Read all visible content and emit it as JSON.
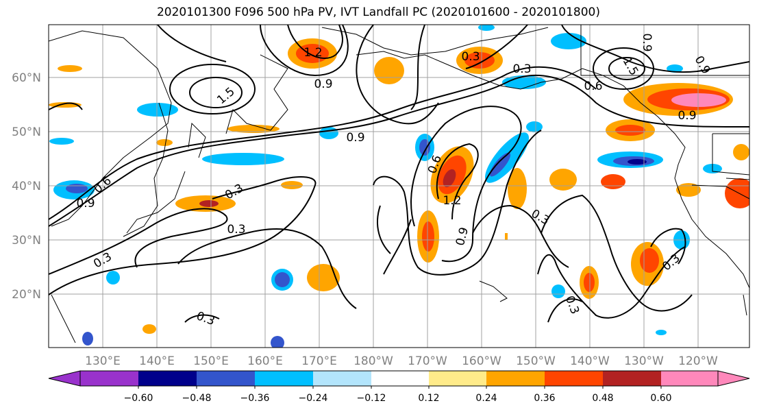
{
  "title": "2020101300 F096 500 hPa PV, IVT Landfall PC (2020101600 - 2020101800)",
  "map": {
    "lat_ticks": [
      {
        "label": "60°N",
        "lat": 60
      },
      {
        "label": "50°N",
        "lat": 50
      },
      {
        "label": "40°N",
        "lat": 40
      },
      {
        "label": "30°N",
        "lat": 30
      },
      {
        "label": "20°N",
        "lat": 20
      }
    ],
    "lon_ticks": [
      {
        "label": "130°E",
        "lon": 130
      },
      {
        "label": "140°E",
        "lon": 140
      },
      {
        "label": "150°E",
        "lon": 150
      },
      {
        "label": "160°E",
        "lon": 160
      },
      {
        "label": "170°E",
        "lon": 170
      },
      {
        "label": "180°W",
        "lon": 180
      },
      {
        "label": "170°W",
        "lon": 190
      },
      {
        "label": "160°W",
        "lon": 200
      },
      {
        "label": "150°W",
        "lon": 210
      },
      {
        "label": "140°W",
        "lon": 220
      },
      {
        "label": "130°W",
        "lon": 230
      },
      {
        "label": "120°W",
        "lon": 240
      }
    ],
    "contour_labels": [
      "1.2",
      "1.5",
      "0.9",
      "0.9",
      "0.9",
      "0.3",
      "0.6",
      "0.9",
      "0.3",
      "0.3",
      "0.3",
      "0.6",
      "1.2",
      "0.9",
      "0.3",
      "0.6",
      "0.3",
      "0.3",
      "0.9",
      "0.9",
      "1.5",
      "0.3",
      "0.3"
    ]
  },
  "colorbar": {
    "colors": [
      "#9932cc",
      "#00008b",
      "#3355cc",
      "#00bfff",
      "#b3e5fc",
      "#ffffff",
      "#ffeb8a",
      "#ffa500",
      "#ff4500",
      "#b22222",
      "#ff88bb"
    ],
    "labels": [
      "−0.60",
      "−0.48",
      "−0.36",
      "−0.24",
      "−0.12",
      "0.12",
      "0.24",
      "0.36",
      "0.48",
      "0.60"
    ]
  }
}
